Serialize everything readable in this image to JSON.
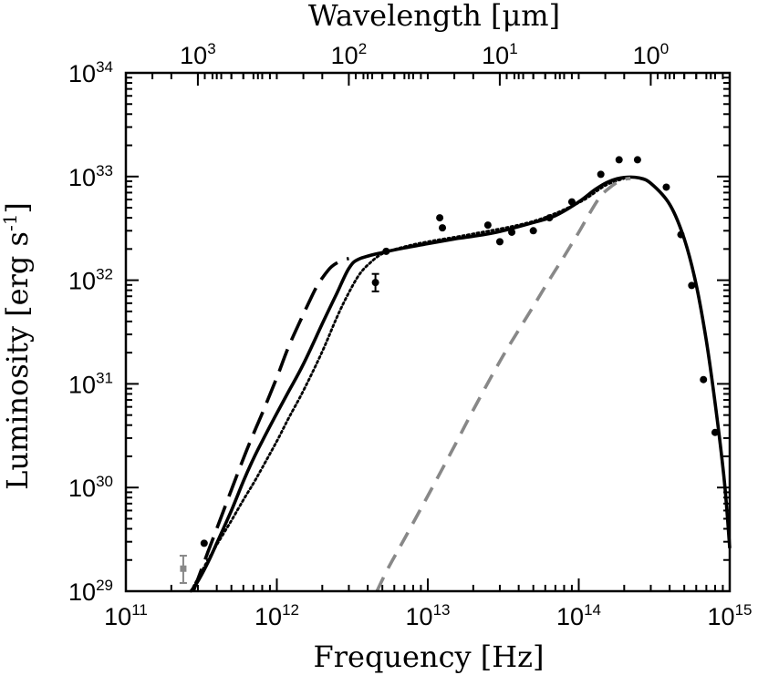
{
  "chart_data": {
    "type": "line",
    "title": "",
    "xlabel": "Frequency [Hz]",
    "ylabel_main": "Luminosity [erg s",
    "ylabel_sup": "-1",
    "ylabel_close": "]",
    "top_xlabel": "Wavelength [μm]",
    "x_scale": "log",
    "y_scale": "log",
    "xlim": [
      100000000000.0,
      1000000000000000.0
    ],
    "ylim": [
      1e+29,
      1e+34
    ],
    "x_ticks": [
      {
        "value": 100000000000.0,
        "base": "10",
        "exp": "11"
      },
      {
        "value": 1000000000000.0,
        "base": "10",
        "exp": "12"
      },
      {
        "value": 10000000000000.0,
        "base": "10",
        "exp": "13"
      },
      {
        "value": 100000000000000.0,
        "base": "10",
        "exp": "14"
      },
      {
        "value": 1000000000000000.0,
        "base": "10",
        "exp": "15"
      }
    ],
    "y_ticks": [
      {
        "value": 1e+29,
        "base": "10",
        "exp": "29"
      },
      {
        "value": 1e+30,
        "base": "10",
        "exp": "30"
      },
      {
        "value": 1e+31,
        "base": "10",
        "exp": "31"
      },
      {
        "value": 1e+32,
        "base": "10",
        "exp": "32"
      },
      {
        "value": 1e+33,
        "base": "10",
        "exp": "33"
      },
      {
        "value": 1e+34,
        "base": "10",
        "exp": "34"
      }
    ],
    "top_ticks": [
      {
        "wavelength_um": 1000,
        "base": "10",
        "exp": "3"
      },
      {
        "wavelength_um": 100,
        "base": "10",
        "exp": "2"
      },
      {
        "wavelength_um": 10,
        "base": "10",
        "exp": "1"
      },
      {
        "wavelength_um": 1,
        "base": "10",
        "exp": "0"
      }
    ],
    "series": [
      {
        "name": "total-model",
        "style": "solid",
        "color": "#000000",
        "points": [
          [
            270000000000.0,
            1e+29
          ],
          [
            300000000000.0,
            1.25e+29
          ],
          [
            350000000000.0,
            1.9e+29
          ],
          [
            400000000000.0,
            2.9e+29
          ],
          [
            500000000000.0,
            6e+29
          ],
          [
            600000000000.0,
            1.15e+30
          ],
          [
            700000000000.0,
            1.9e+30
          ],
          [
            800000000000.0,
            2.8e+30
          ],
          [
            1000000000000.0,
            5.2e+30
          ],
          [
            1200000000000.0,
            8.5e+30
          ],
          [
            1500000000000.0,
            1.55e+31
          ],
          [
            2000000000000.0,
            3.8e+31
          ],
          [
            2500000000000.0,
            7.5e+31
          ],
          [
            3000000000000.0,
            1.3e+32
          ],
          [
            3500000000000.0,
            1.6e+32
          ],
          [
            5000000000000.0,
            1.85e+32
          ],
          [
            7000000000000.0,
            2.05e+32
          ],
          [
            10000000000000.0,
            2.25e+32
          ],
          [
            15000000000000.0,
            2.5e+32
          ],
          [
            20000000000000.0,
            2.65e+32
          ],
          [
            30000000000000.0,
            2.95e+32
          ],
          [
            50000000000000.0,
            3.6e+32
          ],
          [
            70000000000000.0,
            4.2e+32
          ],
          [
            100000000000000.0,
            5.7e+32
          ],
          [
            130000000000000.0,
            7.6e+32
          ],
          [
            160000000000000.0,
            9e+32
          ],
          [
            200000000000000.0,
            9.8e+32
          ],
          [
            250000000000000.0,
            9.7e+32
          ],
          [
            300000000000000.0,
            8.6e+32
          ],
          [
            400000000000000.0,
            5.4e+32
          ],
          [
            500000000000000.0,
            2.5e+32
          ],
          [
            600000000000000.0,
            9e+31
          ],
          [
            700000000000000.0,
            2.6e+31
          ],
          [
            800000000000000.0,
            6.5e+30
          ],
          [
            900000000000000.0,
            1.6e+30
          ],
          [
            950000000000000.0,
            7e+29
          ],
          [
            1000000000000000.0,
            2.6e+29
          ]
        ]
      },
      {
        "name": "long-dash-model",
        "style": "longdash",
        "color": "#000000",
        "points": [
          [
            280000000000.0,
            1e+29
          ],
          [
            350000000000.0,
            2.4e+29
          ],
          [
            400000000000.0,
            4e+29
          ],
          [
            500000000000.0,
            9.5e+29
          ],
          [
            600000000000.0,
            1.9e+30
          ],
          [
            700000000000.0,
            3.3e+30
          ],
          [
            800000000000.0,
            5.2e+30
          ],
          [
            1000000000000.0,
            1.15e+31
          ],
          [
            1200000000000.0,
            2.3e+31
          ],
          [
            1500000000000.0,
            4.7e+31
          ],
          [
            1800000000000.0,
            8.2e+31
          ],
          [
            2000000000000.0,
            1.05e+32
          ],
          [
            2300000000000.0,
            1.35e+32
          ],
          [
            2700000000000.0,
            1.55e+32
          ],
          [
            3000000000000.0,
            1.62e+32
          ]
        ]
      },
      {
        "name": "dotted-model",
        "style": "dotted",
        "color": "#000000",
        "points": [
          [
            270000000000.0,
            1e+29
          ],
          [
            350000000000.0,
            2e+29
          ],
          [
            400000000000.0,
            2.8e+29
          ],
          [
            500000000000.0,
            4.8e+29
          ],
          [
            600000000000.0,
            7.6e+29
          ],
          [
            700000000000.0,
            1.1e+30
          ],
          [
            800000000000.0,
            1.55e+30
          ],
          [
            1000000000000.0,
            2.8e+30
          ],
          [
            1200000000000.0,
            4.7e+30
          ],
          [
            1500000000000.0,
            8.6e+30
          ],
          [
            2000000000000.0,
            2.05e+31
          ],
          [
            2500000000000.0,
            4.4e+31
          ],
          [
            3000000000000.0,
            7.6e+31
          ],
          [
            3500000000000.0,
            1.12e+32
          ],
          [
            4000000000000.0,
            1.4e+32
          ],
          [
            5000000000000.0,
            1.8e+32
          ],
          [
            7000000000000.0,
            2.1e+32
          ],
          [
            10000000000000.0,
            2.35e+32
          ],
          [
            20000000000000.0,
            2.8e+32
          ],
          [
            50000000000000.0,
            3.7e+32
          ],
          [
            100000000000000.0,
            5.6e+32
          ],
          [
            150000000000000.0,
            8.2e+32
          ],
          [
            200000000000000.0,
            9.6e+32
          ]
        ]
      },
      {
        "name": "stellar-photosphere",
        "style": "dashed",
        "color": "#888888",
        "points": [
          [
            4600000000000.0,
            1e+29
          ],
          [
            5500000000000.0,
            1.7e+29
          ],
          [
            7000000000000.0,
            3.2e+29
          ],
          [
            10000000000000.0,
            8.3e+29
          ],
          [
            15000000000000.0,
            2.5e+30
          ],
          [
            20000000000000.0,
            5.6e+30
          ],
          [
            30000000000000.0,
            1.65e+31
          ],
          [
            40000000000000.0,
            3.3e+31
          ],
          [
            50000000000000.0,
            5.6e+31
          ],
          [
            60000000000000.0,
            8.7e+31
          ],
          [
            70000000000000.0,
            1.25e+32
          ],
          [
            80000000000000.0,
            1.7e+32
          ],
          [
            100000000000000.0,
            2.9e+32
          ],
          [
            120000000000000.0,
            4.6e+32
          ],
          [
            140000000000000.0,
            6.5e+32
          ],
          [
            160000000000000.0,
            7.8e+32
          ],
          [
            180000000000000.0,
            8.8e+32
          ],
          [
            200000000000000.0,
            9.4e+32
          ],
          [
            220000000000000.0,
            9.6e+32
          ]
        ]
      }
    ],
    "observations": [
      {
        "x": 330000000000.0,
        "y": 2.9e+29
      },
      {
        "x": 5300000000000.0,
        "y": 1.9e+32
      },
      {
        "x": 12000000000000.0,
        "y": 4e+32
      },
      {
        "x": 12500000000000.0,
        "y": 3.2e+32
      },
      {
        "x": 25000000000000.0,
        "y": 3.4e+32
      },
      {
        "x": 30000000000000.0,
        "y": 2.35e+32
      },
      {
        "x": 36000000000000.0,
        "y": 2.9e+32
      },
      {
        "x": 50000000000000.0,
        "y": 3e+32
      },
      {
        "x": 64000000000000.0,
        "y": 4e+32
      },
      {
        "x": 90000000000000.0,
        "y": 5.7e+32
      },
      {
        "x": 140000000000000.0,
        "y": 1.05e+33
      },
      {
        "x": 185000000000000.0,
        "y": 1.45e+33
      },
      {
        "x": 245000000000000.0,
        "y": 1.45e+33
      },
      {
        "x": 380000000000000.0,
        "y": 7.9e+32
      },
      {
        "x": 475000000000000.0,
        "y": 2.75e+32
      },
      {
        "x": 560000000000000.0,
        "y": 8.9e+31
      },
      {
        "x": 670000000000000.0,
        "y": 1.1e+31
      },
      {
        "x": 800000000000000.0,
        "y": 3.4e+30
      }
    ],
    "errorbar_points": [
      {
        "x": 4500000000000.0,
        "y": 9.5e+31,
        "ylow": 7.8e+31,
        "yhigh": 1.15e+32,
        "color": "#000000"
      },
      {
        "x": 240000000000.0,
        "y": 1.65e+29,
        "ylow": 1.2e+29,
        "yhigh": 2.2e+29,
        "color": "#888888"
      }
    ]
  }
}
